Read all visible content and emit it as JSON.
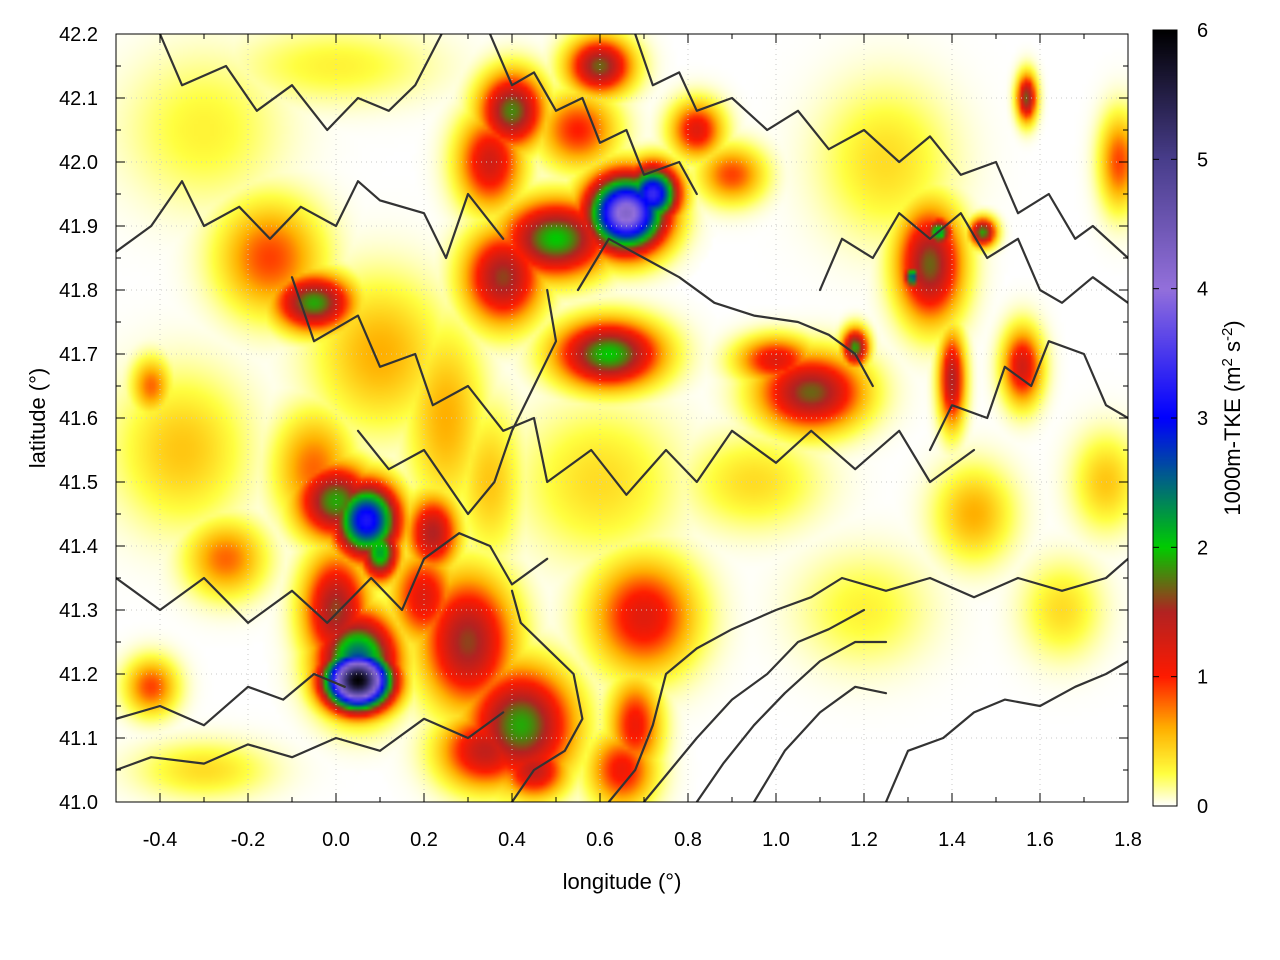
{
  "chart_data": {
    "type": "heatmap",
    "title": "",
    "xlabel": "longitude (°)",
    "ylabel": "latitude (°)",
    "xlim": [
      -0.5,
      1.8
    ],
    "ylim": [
      41.0,
      42.2
    ],
    "x_ticks": [
      -0.4,
      -0.2,
      0.0,
      0.2,
      0.4,
      0.6,
      0.8,
      1.0,
      1.2,
      1.4,
      1.6,
      1.8
    ],
    "x_tick_labels": [
      "-0.4",
      "-0.2",
      "0.0",
      "0.2",
      "0.4",
      "0.6",
      "0.8",
      "1.0",
      "1.2",
      "1.4",
      "1.6",
      "1.8"
    ],
    "y_ticks": [
      41.0,
      41.1,
      41.2,
      41.3,
      41.4,
      41.5,
      41.6,
      41.7,
      41.8,
      41.9,
      42.0,
      42.1,
      42.2
    ],
    "y_tick_labels": [
      "41.0",
      "41.1",
      "41.2",
      "41.3",
      "41.4",
      "41.5",
      "41.6",
      "41.7",
      "41.8",
      "41.9",
      "42.0",
      "42.1",
      "42.2"
    ],
    "grid": true,
    "colorbar": {
      "label_main": "1000m-TKE (m",
      "label_sup1": "2",
      "label_mid": " s",
      "label_sup2": "-2",
      "label_end": ")",
      "range": [
        0,
        6
      ],
      "ticks": [
        0,
        1,
        2,
        3,
        4,
        5,
        6
      ],
      "tick_labels": [
        "0",
        "1",
        "2",
        "3",
        "4",
        "5",
        "6"
      ],
      "stops": [
        {
          "v": 0.0,
          "color": "#ffffff"
        },
        {
          "v": 0.25,
          "color": "#ffff40"
        },
        {
          "v": 0.6,
          "color": "#ffb000"
        },
        {
          "v": 1.0,
          "color": "#ff1a00"
        },
        {
          "v": 1.5,
          "color": "#b22222"
        },
        {
          "v": 2.0,
          "color": "#00cc00"
        },
        {
          "v": 3.0,
          "color": "#0000ff"
        },
        {
          "v": 4.0,
          "color": "#9370db"
        },
        {
          "v": 5.0,
          "color": "#483d8b"
        },
        {
          "v": 6.0,
          "color": "#000000"
        }
      ]
    },
    "blobs": [
      {
        "lon": 0.05,
        "lat": 41.19,
        "value": 6.0,
        "sx": 0.05,
        "sy": 0.03
      },
      {
        "lon": 0.05,
        "lat": 41.22,
        "value": 2.6,
        "sx": 0.06,
        "sy": 0.05
      },
      {
        "lon": 0.0,
        "lat": 41.3,
        "value": 1.6,
        "sx": 0.05,
        "sy": 0.06
      },
      {
        "lon": 0.07,
        "lat": 41.44,
        "value": 3.2,
        "sx": 0.05,
        "sy": 0.04
      },
      {
        "lon": 0.0,
        "lat": 41.47,
        "value": 1.9,
        "sx": 0.06,
        "sy": 0.04
      },
      {
        "lon": 0.1,
        "lat": 41.39,
        "value": 2.2,
        "sx": 0.03,
        "sy": 0.03
      },
      {
        "lon": 0.22,
        "lat": 41.42,
        "value": 1.5,
        "sx": 0.04,
        "sy": 0.04
      },
      {
        "lon": 0.3,
        "lat": 41.25,
        "value": 1.6,
        "sx": 0.07,
        "sy": 0.07
      },
      {
        "lon": 0.42,
        "lat": 41.12,
        "value": 1.9,
        "sx": 0.08,
        "sy": 0.06
      },
      {
        "lon": 0.34,
        "lat": 41.08,
        "value": 1.4,
        "sx": 0.07,
        "sy": 0.04
      },
      {
        "lon": 0.45,
        "lat": 41.05,
        "value": 1.4,
        "sx": 0.05,
        "sy": 0.03
      },
      {
        "lon": 0.2,
        "lat": 41.32,
        "value": 1.2,
        "sx": 0.05,
        "sy": 0.05
      },
      {
        "lon": 0.66,
        "lat": 41.92,
        "value": 4.2,
        "sx": 0.06,
        "sy": 0.04
      },
      {
        "lon": 0.72,
        "lat": 41.95,
        "value": 3.4,
        "sx": 0.04,
        "sy": 0.03
      },
      {
        "lon": 0.5,
        "lat": 41.88,
        "value": 2.0,
        "sx": 0.08,
        "sy": 0.04
      },
      {
        "lon": 0.38,
        "lat": 41.82,
        "value": 1.6,
        "sx": 0.06,
        "sy": 0.05
      },
      {
        "lon": 0.4,
        "lat": 42.08,
        "value": 1.8,
        "sx": 0.05,
        "sy": 0.04
      },
      {
        "lon": 0.35,
        "lat": 42.0,
        "value": 1.3,
        "sx": 0.05,
        "sy": 0.05
      },
      {
        "lon": 0.6,
        "lat": 42.15,
        "value": 1.7,
        "sx": 0.05,
        "sy": 0.03
      },
      {
        "lon": 0.82,
        "lat": 42.05,
        "value": 1.2,
        "sx": 0.04,
        "sy": 0.03
      },
      {
        "lon": 0.62,
        "lat": 41.7,
        "value": 2.0,
        "sx": 0.08,
        "sy": 0.035
      },
      {
        "lon": 1.08,
        "lat": 41.64,
        "value": 1.7,
        "sx": 0.08,
        "sy": 0.04
      },
      {
        "lon": 1.0,
        "lat": 41.69,
        "value": 1.2,
        "sx": 0.06,
        "sy": 0.025
      },
      {
        "lon": 1.18,
        "lat": 41.71,
        "value": 1.9,
        "sx": 0.02,
        "sy": 0.02
      },
      {
        "lon": -0.05,
        "lat": 41.78,
        "value": 1.9,
        "sx": 0.06,
        "sy": 0.03
      },
      {
        "lon": -0.15,
        "lat": 41.85,
        "value": 0.9,
        "sx": 0.08,
        "sy": 0.06
      },
      {
        "lon": 1.35,
        "lat": 41.84,
        "value": 1.7,
        "sx": 0.05,
        "sy": 0.06
      },
      {
        "lon": 1.37,
        "lat": 41.89,
        "value": 2.3,
        "sx": 0.02,
        "sy": 0.015
      },
      {
        "lon": 1.31,
        "lat": 41.82,
        "value": 2.7,
        "sx": 0.012,
        "sy": 0.012
      },
      {
        "lon": 1.47,
        "lat": 41.89,
        "value": 1.9,
        "sx": 0.02,
        "sy": 0.015
      },
      {
        "lon": 1.4,
        "lat": 41.66,
        "value": 1.5,
        "sx": 0.02,
        "sy": 0.05
      },
      {
        "lon": 1.56,
        "lat": 41.68,
        "value": 1.3,
        "sx": 0.03,
        "sy": 0.04
      },
      {
        "lon": 1.57,
        "lat": 42.1,
        "value": 1.7,
        "sx": 0.015,
        "sy": 0.025
      },
      {
        "lon": 0.7,
        "lat": 41.29,
        "value": 1.2,
        "sx": 0.08,
        "sy": 0.06
      },
      {
        "lon": 0.65,
        "lat": 41.05,
        "value": 1.1,
        "sx": 0.05,
        "sy": 0.04
      },
      {
        "lon": 0.68,
        "lat": 41.12,
        "value": 1.1,
        "sx": 0.04,
        "sy": 0.05
      },
      {
        "lon": -0.42,
        "lat": 41.18,
        "value": 0.9,
        "sx": 0.04,
        "sy": 0.03
      },
      {
        "lon": -0.25,
        "lat": 41.38,
        "value": 0.8,
        "sx": 0.06,
        "sy": 0.04
      },
      {
        "lon": -0.05,
        "lat": 41.52,
        "value": 0.8,
        "sx": 0.06,
        "sy": 0.06
      },
      {
        "lon": -0.35,
        "lat": 41.55,
        "value": 0.5,
        "sx": 0.1,
        "sy": 0.08
      },
      {
        "lon": -0.42,
        "lat": 41.65,
        "value": 0.8,
        "sx": 0.03,
        "sy": 0.03
      },
      {
        "lon": 0.1,
        "lat": 41.7,
        "value": 0.6,
        "sx": 0.1,
        "sy": 0.08
      },
      {
        "lon": 1.78,
        "lat": 42.0,
        "value": 0.9,
        "sx": 0.03,
        "sy": 0.05
      },
      {
        "lon": 1.75,
        "lat": 41.5,
        "value": 0.5,
        "sx": 0.05,
        "sy": 0.05
      },
      {
        "lon": 0.95,
        "lat": 41.5,
        "value": 0.4,
        "sx": 0.1,
        "sy": 0.05
      },
      {
        "lon": 1.45,
        "lat": 41.45,
        "value": 0.6,
        "sx": 0.06,
        "sy": 0.05
      },
      {
        "lon": 0.55,
        "lat": 42.05,
        "value": 1.0,
        "sx": 0.06,
        "sy": 0.04
      },
      {
        "lon": 0.9,
        "lat": 41.98,
        "value": 0.9,
        "sx": 0.05,
        "sy": 0.03
      },
      {
        "lon": 0.25,
        "lat": 41.6,
        "value": 0.6,
        "sx": 0.06,
        "sy": 0.1
      },
      {
        "lon": 0.6,
        "lat": 41.5,
        "value": 0.4,
        "sx": 0.12,
        "sy": 0.08
      },
      {
        "lon": 0.35,
        "lat": 41.5,
        "value": 0.5,
        "sx": 0.05,
        "sy": 0.08
      },
      {
        "lon": 1.2,
        "lat": 41.3,
        "value": 0.3,
        "sx": 0.1,
        "sy": 0.06
      },
      {
        "lon": -0.3,
        "lat": 41.05,
        "value": 0.4,
        "sx": 0.1,
        "sy": 0.03
      },
      {
        "lon": 1.65,
        "lat": 41.3,
        "value": 0.4,
        "sx": 0.06,
        "sy": 0.05
      },
      {
        "lon": 1.25,
        "lat": 42.0,
        "value": 0.4,
        "sx": 0.1,
        "sy": 0.08
      },
      {
        "lon": -0.3,
        "lat": 42.05,
        "value": 0.3,
        "sx": 0.12,
        "sy": 0.08
      },
      {
        "lon": 0.0,
        "lat": 42.15,
        "value": 0.3,
        "sx": 0.15,
        "sy": 0.04
      }
    ],
    "contours": [
      [
        [
          -0.5,
          41.86
        ],
        [
          -0.42,
          41.9
        ],
        [
          -0.35,
          41.97
        ],
        [
          -0.3,
          41.9
        ],
        [
          -0.22,
          41.93
        ],
        [
          -0.15,
          41.88
        ],
        [
          -0.08,
          41.93
        ],
        [
          0.0,
          41.9
        ],
        [
          0.05,
          41.97
        ],
        [
          0.1,
          41.94
        ],
        [
          0.2,
          41.92
        ],
        [
          0.25,
          41.85
        ],
        [
          0.3,
          41.95
        ],
        [
          0.38,
          41.88
        ]
      ],
      [
        [
          -0.4,
          42.2
        ],
        [
          -0.35,
          42.12
        ],
        [
          -0.25,
          42.15
        ],
        [
          -0.18,
          42.08
        ],
        [
          -0.1,
          42.12
        ],
        [
          -0.02,
          42.05
        ],
        [
          0.05,
          42.1
        ],
        [
          0.12,
          42.08
        ],
        [
          0.18,
          42.12
        ],
        [
          0.24,
          42.2
        ]
      ],
      [
        [
          -0.1,
          41.82
        ],
        [
          -0.05,
          41.72
        ],
        [
          0.05,
          41.76
        ],
        [
          0.1,
          41.68
        ],
        [
          0.18,
          41.7
        ],
        [
          0.22,
          41.62
        ],
        [
          0.3,
          41.65
        ],
        [
          0.38,
          41.58
        ],
        [
          0.45,
          41.6
        ],
        [
          0.48,
          41.5
        ],
        [
          0.58,
          41.55
        ],
        [
          0.66,
          41.48
        ],
        [
          0.75,
          41.55
        ],
        [
          0.82,
          41.5
        ],
        [
          0.9,
          41.58
        ],
        [
          1.0,
          41.53
        ],
        [
          1.08,
          41.58
        ],
        [
          1.18,
          41.52
        ],
        [
          1.28,
          41.58
        ],
        [
          1.35,
          41.5
        ],
        [
          1.45,
          41.55
        ]
      ],
      [
        [
          -0.5,
          41.35
        ],
        [
          -0.4,
          41.3
        ],
        [
          -0.3,
          41.35
        ],
        [
          -0.2,
          41.28
        ],
        [
          -0.1,
          41.33
        ],
        [
          -0.02,
          41.28
        ],
        [
          0.08,
          41.35
        ],
        [
          0.15,
          41.3
        ],
        [
          0.2,
          41.38
        ],
        [
          0.28,
          41.42
        ],
        [
          0.35,
          41.4
        ],
        [
          0.4,
          41.34
        ],
        [
          0.48,
          41.38
        ]
      ],
      [
        [
          -0.5,
          41.13
        ],
        [
          -0.4,
          41.15
        ],
        [
          -0.3,
          41.12
        ],
        [
          -0.2,
          41.18
        ],
        [
          -0.12,
          41.16
        ],
        [
          -0.05,
          41.2
        ],
        [
          0.02,
          41.18
        ]
      ],
      [
        [
          -0.5,
          41.05
        ],
        [
          -0.42,
          41.07
        ],
        [
          -0.3,
          41.06
        ],
        [
          -0.2,
          41.09
        ],
        [
          -0.1,
          41.07
        ],
        [
          0.0,
          41.1
        ],
        [
          0.1,
          41.08
        ],
        [
          0.2,
          41.13
        ],
        [
          0.3,
          41.1
        ],
        [
          0.38,
          41.14
        ]
      ],
      [
        [
          0.4,
          41.0
        ],
        [
          0.45,
          41.05
        ],
        [
          0.52,
          41.08
        ],
        [
          0.56,
          41.13
        ],
        [
          0.54,
          41.2
        ],
        [
          0.48,
          41.24
        ],
        [
          0.42,
          41.28
        ],
        [
          0.4,
          41.33
        ]
      ],
      [
        [
          0.62,
          41.0
        ],
        [
          0.68,
          41.05
        ],
        [
          0.72,
          41.12
        ],
        [
          0.75,
          41.2
        ],
        [
          0.82,
          41.24
        ],
        [
          0.9,
          41.27
        ],
        [
          1.0,
          41.3
        ],
        [
          1.08,
          41.32
        ],
        [
          1.15,
          41.35
        ],
        [
          1.25,
          41.33
        ],
        [
          1.35,
          41.35
        ],
        [
          1.45,
          41.32
        ],
        [
          1.55,
          41.35
        ],
        [
          1.65,
          41.33
        ],
        [
          1.75,
          41.35
        ],
        [
          1.8,
          41.38
        ]
      ],
      [
        [
          0.7,
          41.0
        ],
        [
          0.76,
          41.05
        ],
        [
          0.82,
          41.1
        ],
        [
          0.9,
          41.16
        ],
        [
          0.98,
          41.2
        ],
        [
          1.05,
          41.25
        ],
        [
          1.12,
          41.27
        ],
        [
          1.2,
          41.3
        ]
      ],
      [
        [
          0.82,
          41.0
        ],
        [
          0.88,
          41.06
        ],
        [
          0.95,
          41.12
        ],
        [
          1.02,
          41.17
        ],
        [
          1.1,
          41.22
        ],
        [
          1.18,
          41.25
        ],
        [
          1.25,
          41.25
        ]
      ],
      [
        [
          0.95,
          41.0
        ],
        [
          1.02,
          41.08
        ],
        [
          1.1,
          41.14
        ],
        [
          1.18,
          41.18
        ],
        [
          1.25,
          41.17
        ]
      ],
      [
        [
          1.25,
          41.0
        ],
        [
          1.3,
          41.08
        ],
        [
          1.38,
          41.1
        ],
        [
          1.45,
          41.14
        ],
        [
          1.52,
          41.16
        ],
        [
          1.6,
          41.15
        ],
        [
          1.68,
          41.18
        ],
        [
          1.75,
          41.2
        ],
        [
          1.8,
          41.22
        ]
      ],
      [
        [
          0.55,
          41.8
        ],
        [
          0.62,
          41.88
        ],
        [
          0.7,
          41.85
        ],
        [
          0.78,
          41.82
        ],
        [
          0.86,
          41.78
        ],
        [
          0.95,
          41.76
        ],
        [
          1.05,
          41.75
        ],
        [
          1.12,
          41.73
        ],
        [
          1.18,
          41.7
        ],
        [
          1.22,
          41.65
        ]
      ],
      [
        [
          0.35,
          42.2
        ],
        [
          0.4,
          42.12
        ],
        [
          0.45,
          42.14
        ],
        [
          0.5,
          42.08
        ],
        [
          0.56,
          42.1
        ],
        [
          0.6,
          42.03
        ],
        [
          0.66,
          42.05
        ],
        [
          0.7,
          41.98
        ],
        [
          0.78,
          42.0
        ],
        [
          0.82,
          41.95
        ]
      ],
      [
        [
          0.68,
          42.2
        ],
        [
          0.72,
          42.12
        ],
        [
          0.78,
          42.14
        ],
        [
          0.82,
          42.08
        ],
        [
          0.9,
          42.1
        ],
        [
          0.98,
          42.05
        ],
        [
          1.05,
          42.08
        ],
        [
          1.12,
          42.02
        ],
        [
          1.2,
          42.05
        ],
        [
          1.28,
          42.0
        ],
        [
          1.35,
          42.04
        ],
        [
          1.42,
          41.98
        ],
        [
          1.5,
          42.0
        ],
        [
          1.55,
          41.92
        ],
        [
          1.62,
          41.95
        ],
        [
          1.68,
          41.88
        ],
        [
          1.72,
          41.9
        ],
        [
          1.8,
          41.85
        ]
      ],
      [
        [
          1.1,
          41.8
        ],
        [
          1.15,
          41.88
        ],
        [
          1.22,
          41.85
        ],
        [
          1.28,
          41.92
        ],
        [
          1.35,
          41.88
        ],
        [
          1.42,
          41.92
        ],
        [
          1.48,
          41.85
        ],
        [
          1.55,
          41.88
        ],
        [
          1.6,
          41.8
        ],
        [
          1.65,
          41.78
        ],
        [
          1.72,
          41.82
        ],
        [
          1.8,
          41.78
        ]
      ],
      [
        [
          1.35,
          41.55
        ],
        [
          1.4,
          41.62
        ],
        [
          1.48,
          41.6
        ],
        [
          1.52,
          41.68
        ],
        [
          1.58,
          41.65
        ],
        [
          1.62,
          41.72
        ],
        [
          1.7,
          41.7
        ],
        [
          1.75,
          41.62
        ],
        [
          1.8,
          41.6
        ]
      ],
      [
        [
          0.48,
          41.8
        ],
        [
          0.5,
          41.72
        ],
        [
          0.45,
          41.65
        ],
        [
          0.4,
          41.58
        ],
        [
          0.36,
          41.5
        ],
        [
          0.3,
          41.45
        ],
        [
          0.25,
          41.5
        ],
        [
          0.2,
          41.55
        ],
        [
          0.12,
          41.52
        ],
        [
          0.05,
          41.58
        ]
      ]
    ]
  }
}
